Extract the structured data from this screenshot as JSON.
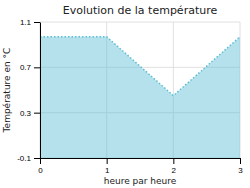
{
  "chart_data": {
    "type": "area",
    "title": "Evolution de la température",
    "xlabel": "heure par heure",
    "ylabel": "Température en °C",
    "x": [
      0,
      1,
      2,
      3
    ],
    "values": [
      0.97,
      0.97,
      0.45,
      0.97
    ],
    "color": "#5bbdd4",
    "line_style": "dotted",
    "xlim": [
      0,
      3
    ],
    "ylim": [
      -0.1,
      1.1
    ],
    "xticks": [
      0,
      1,
      2,
      3
    ],
    "yticks": [
      -0.1,
      0.3,
      0.7,
      1.1
    ],
    "grid": true
  }
}
